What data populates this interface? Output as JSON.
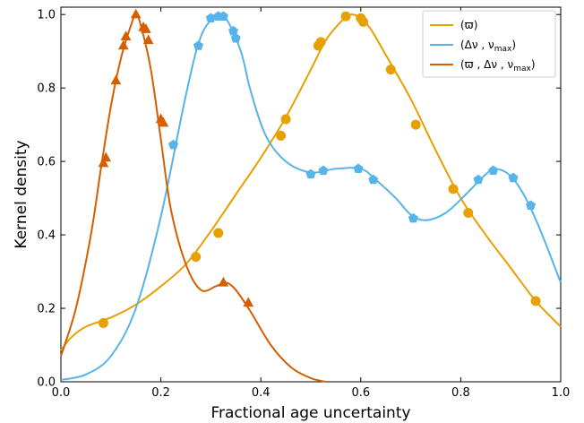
{
  "chart_data": {
    "type": "line",
    "xlabel": "Fractional age uncertainty",
    "ylabel": "Kernel density",
    "xlim": [
      0.0,
      1.0
    ],
    "ylim": [
      0.0,
      1.02
    ],
    "grid": false,
    "legend_position": "top-right",
    "x_ticks": [
      "0.0",
      "0.2",
      "0.4",
      "0.6",
      "0.8",
      "1.0"
    ],
    "y_ticks": [
      "0.0",
      "0.2",
      "0.4",
      "0.6",
      "0.8",
      "1.0"
    ],
    "series": [
      {
        "name": "(ϖ)",
        "color": "#E6A000",
        "marker": "circle",
        "curve": [
          [
            0.0,
            0.085
          ],
          [
            0.02,
            0.12
          ],
          [
            0.05,
            0.15
          ],
          [
            0.1,
            0.175
          ],
          [
            0.15,
            0.21
          ],
          [
            0.2,
            0.26
          ],
          [
            0.25,
            0.32
          ],
          [
            0.3,
            0.41
          ],
          [
            0.35,
            0.51
          ],
          [
            0.4,
            0.61
          ],
          [
            0.45,
            0.72
          ],
          [
            0.5,
            0.85
          ],
          [
            0.53,
            0.93
          ],
          [
            0.56,
            0.98
          ],
          [
            0.58,
            1.0
          ],
          [
            0.6,
            0.99
          ],
          [
            0.62,
            0.96
          ],
          [
            0.65,
            0.89
          ],
          [
            0.7,
            0.77
          ],
          [
            0.75,
            0.63
          ],
          [
            0.8,
            0.5
          ],
          [
            0.85,
            0.4
          ],
          [
            0.9,
            0.31
          ],
          [
            0.95,
            0.22
          ],
          [
            1.0,
            0.15
          ]
        ],
        "points": [
          [
            0.085,
            0.16
          ],
          [
            0.27,
            0.34
          ],
          [
            0.315,
            0.405
          ],
          [
            0.44,
            0.67
          ],
          [
            0.45,
            0.715
          ],
          [
            0.515,
            0.915
          ],
          [
            0.52,
            0.925
          ],
          [
            0.57,
            0.995
          ],
          [
            0.6,
            0.99
          ],
          [
            0.605,
            0.98
          ],
          [
            0.66,
            0.85
          ],
          [
            0.71,
            0.7
          ],
          [
            0.785,
            0.525
          ],
          [
            0.815,
            0.46
          ],
          [
            0.95,
            0.22
          ]
        ]
      },
      {
        "name": "(Δν , ν<sub>max</sub>)",
        "name_text": "(Δν , νmax)",
        "color": "#56B4E9",
        "marker": "pentagon",
        "curve": [
          [
            0.0,
            0.005
          ],
          [
            0.05,
            0.02
          ],
          [
            0.1,
            0.07
          ],
          [
            0.15,
            0.2
          ],
          [
            0.2,
            0.45
          ],
          [
            0.25,
            0.78
          ],
          [
            0.28,
            0.94
          ],
          [
            0.31,
            0.995
          ],
          [
            0.33,
            0.99
          ],
          [
            0.36,
            0.9
          ],
          [
            0.38,
            0.79
          ],
          [
            0.41,
            0.67
          ],
          [
            0.45,
            0.6
          ],
          [
            0.5,
            0.57
          ],
          [
            0.55,
            0.58
          ],
          [
            0.6,
            0.58
          ],
          [
            0.63,
            0.55
          ],
          [
            0.67,
            0.5
          ],
          [
            0.7,
            0.455
          ],
          [
            0.73,
            0.44
          ],
          [
            0.77,
            0.46
          ],
          [
            0.81,
            0.51
          ],
          [
            0.85,
            0.565
          ],
          [
            0.87,
            0.58
          ],
          [
            0.9,
            0.56
          ],
          [
            0.93,
            0.5
          ],
          [
            0.96,
            0.41
          ],
          [
            1.0,
            0.27
          ]
        ],
        "points": [
          [
            0.225,
            0.645
          ],
          [
            0.275,
            0.915
          ],
          [
            0.3,
            0.99
          ],
          [
            0.315,
            0.995
          ],
          [
            0.325,
            0.995
          ],
          [
            0.345,
            0.955
          ],
          [
            0.35,
            0.935
          ],
          [
            0.5,
            0.565
          ],
          [
            0.525,
            0.575
          ],
          [
            0.595,
            0.58
          ],
          [
            0.625,
            0.55
          ],
          [
            0.705,
            0.445
          ],
          [
            0.835,
            0.55
          ],
          [
            0.865,
            0.575
          ],
          [
            0.905,
            0.555
          ],
          [
            0.94,
            0.48
          ]
        ]
      },
      {
        "name": "(ϖ , Δν , ν<sub>max</sub>)",
        "name_text": "(ϖ , Δν , νmax)",
        "color": "#D55E00",
        "marker": "triangle",
        "curve": [
          [
            0.0,
            0.07
          ],
          [
            0.03,
            0.2
          ],
          [
            0.06,
            0.4
          ],
          [
            0.08,
            0.58
          ],
          [
            0.1,
            0.75
          ],
          [
            0.12,
            0.88
          ],
          [
            0.14,
            0.97
          ],
          [
            0.15,
            1.0
          ],
          [
            0.16,
            0.97
          ],
          [
            0.18,
            0.85
          ],
          [
            0.2,
            0.66
          ],
          [
            0.22,
            0.47
          ],
          [
            0.25,
            0.32
          ],
          [
            0.28,
            0.25
          ],
          [
            0.31,
            0.26
          ],
          [
            0.33,
            0.27
          ],
          [
            0.35,
            0.25
          ],
          [
            0.38,
            0.19
          ],
          [
            0.42,
            0.1
          ],
          [
            0.46,
            0.04
          ],
          [
            0.5,
            0.01
          ],
          [
            0.53,
            0.0
          ]
        ],
        "points": [
          [
            0.085,
            0.595
          ],
          [
            0.09,
            0.61
          ],
          [
            0.11,
            0.82
          ],
          [
            0.125,
            0.915
          ],
          [
            0.13,
            0.94
          ],
          [
            0.15,
            1.0
          ],
          [
            0.165,
            0.965
          ],
          [
            0.17,
            0.96
          ],
          [
            0.175,
            0.93
          ],
          [
            0.2,
            0.715
          ],
          [
            0.205,
            0.705
          ],
          [
            0.325,
            0.27
          ],
          [
            0.375,
            0.215
          ]
        ]
      }
    ]
  }
}
